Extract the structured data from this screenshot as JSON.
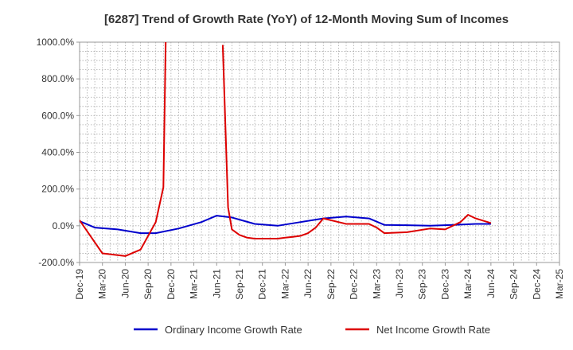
{
  "chart_data": {
    "type": "line",
    "title": "[6287]  Trend of Growth Rate (YoY) of 12-Month Moving Sum of Incomes",
    "ylim": [
      -200,
      1000
    ],
    "yticks": [
      -200,
      0,
      200,
      400,
      600,
      800,
      1000
    ],
    "ytick_labels": [
      "-200.0%",
      "0.0%",
      "200.0%",
      "400.0%",
      "600.0%",
      "800.0%",
      "1000.0%"
    ],
    "x_start_month": 0,
    "x_end_month": 63,
    "xtick_labels": [
      "Dec-19",
      "Mar-20",
      "Jun-20",
      "Sep-20",
      "Dec-20",
      "Mar-21",
      "Jun-21",
      "Sep-21",
      "Dec-21",
      "Mar-22",
      "Jun-22",
      "Sep-22",
      "Dec-22",
      "Mar-23",
      "Jun-23",
      "Sep-23",
      "Dec-23",
      "Mar-24",
      "Jun-24",
      "Sep-24",
      "Dec-24",
      "Mar-25"
    ],
    "grid": true,
    "legend_position": "bottom",
    "series": [
      {
        "name": "Ordinary Income Growth Rate",
        "color": "#0000cc",
        "points": [
          [
            0,
            25
          ],
          [
            2,
            -10
          ],
          [
            5,
            -20
          ],
          [
            8,
            -40
          ],
          [
            10,
            -40
          ],
          [
            13,
            -15
          ],
          [
            16,
            20
          ],
          [
            18,
            55
          ],
          [
            20,
            45
          ],
          [
            23,
            10
          ],
          [
            26,
            0
          ],
          [
            29,
            20
          ],
          [
            32,
            40
          ],
          [
            35,
            50
          ],
          [
            38,
            40
          ],
          [
            40,
            5
          ],
          [
            43,
            3
          ],
          [
            46,
            0
          ],
          [
            49,
            5
          ],
          [
            52,
            10
          ],
          [
            54,
            10
          ]
        ]
      },
      {
        "name": "Net Income Growth Rate",
        "color": "#dd0000",
        "points": [
          [
            0,
            30
          ],
          [
            3,
            -150
          ],
          [
            6,
            -165
          ],
          [
            8,
            -130
          ],
          [
            10,
            20
          ],
          [
            11,
            210
          ],
          [
            11.3,
            1000
          ],
          [
            null,
            null
          ],
          [
            18.8,
            985
          ],
          [
            19.5,
            100
          ],
          [
            20,
            -20
          ],
          [
            21,
            -50
          ],
          [
            22,
            -65
          ],
          [
            23,
            -70
          ],
          [
            24,
            -70
          ],
          [
            25,
            -70
          ],
          [
            26,
            -70
          ],
          [
            27,
            -65
          ],
          [
            28,
            -60
          ],
          [
            29,
            -55
          ],
          [
            30,
            -40
          ],
          [
            31,
            -10
          ],
          [
            32,
            40
          ],
          [
            33,
            30
          ],
          [
            34,
            20
          ],
          [
            35,
            10
          ],
          [
            36,
            10
          ],
          [
            37,
            10
          ],
          [
            38,
            10
          ],
          [
            39,
            -10
          ],
          [
            40,
            -40
          ],
          [
            43,
            -35
          ],
          [
            46,
            -15
          ],
          [
            48,
            -20
          ],
          [
            50,
            20
          ],
          [
            51,
            60
          ],
          [
            52,
            40
          ],
          [
            54,
            15
          ]
        ]
      }
    ]
  }
}
